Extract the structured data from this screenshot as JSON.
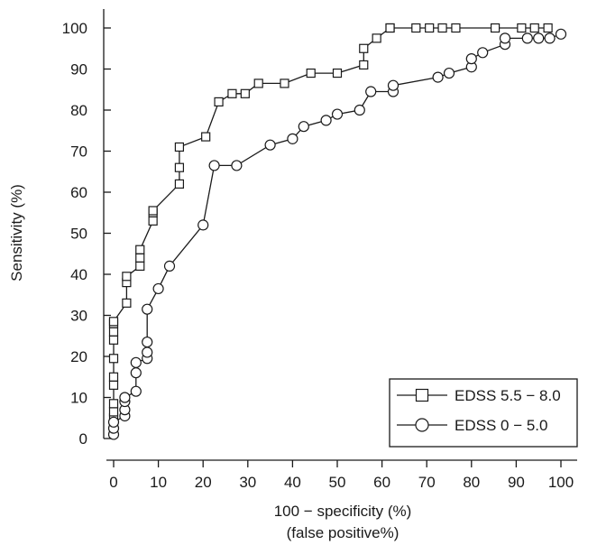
{
  "chart_data": {
    "type": "line",
    "xlabel": "100 − specificity (%)",
    "xlabel_sub": "(false positive%)",
    "ylabel": "Sensitivity (%)",
    "xlim": [
      0,
      100
    ],
    "ylim": [
      0,
      100
    ],
    "xticks": [
      0,
      10,
      20,
      30,
      40,
      50,
      60,
      70,
      80,
      90,
      100
    ],
    "yticks": [
      0,
      10,
      20,
      30,
      40,
      50,
      60,
      70,
      80,
      90,
      100
    ],
    "grid": false,
    "legend_position": "bottom-right",
    "series": [
      {
        "name": "EDSS 5.5 − 8.0",
        "marker": "square",
        "x": [
          0,
          0,
          0,
          0,
          0,
          0,
          0,
          0,
          0,
          0,
          0,
          0,
          2.9,
          2.9,
          2.9,
          5.9,
          5.9,
          5.9,
          8.8,
          8.8,
          8.8,
          14.7,
          14.7,
          14.7,
          20.6,
          23.5,
          26.5,
          29.4,
          32.4,
          38.2,
          44.1,
          50.0,
          55.9,
          55.9,
          58.8,
          61.8,
          61.8,
          67.6,
          70.6,
          73.5,
          76.5,
          85.3,
          91.2,
          94.1,
          97.1
        ],
        "y": [
          1.5,
          3,
          5,
          6.5,
          8.5,
          13,
          15,
          19.5,
          24,
          26,
          28,
          28.5,
          33,
          38,
          39.5,
          42,
          44,
          46,
          53,
          55,
          55.5,
          62,
          66,
          71,
          73.5,
          82,
          84,
          84,
          86.5,
          86.5,
          89,
          89,
          91,
          95,
          97.5,
          100,
          100,
          100,
          100,
          100,
          100,
          100,
          100,
          100,
          100
        ]
      },
      {
        "name": "EDSS 0 − 5.0",
        "marker": "circle",
        "x": [
          0,
          0,
          0,
          2.5,
          2.5,
          2.5,
          2.5,
          5,
          5,
          5,
          7.5,
          7.5,
          7.5,
          7.5,
          10,
          12.5,
          20,
          22.5,
          27.5,
          35,
          40,
          42.5,
          47.5,
          50,
          55,
          57.5,
          62.5,
          62.5,
          72.5,
          75,
          80,
          80,
          82.5,
          87.5,
          87.5,
          92.5,
          95,
          97.5,
          100
        ],
        "y": [
          1,
          2.5,
          4,
          5.5,
          7,
          9,
          10,
          11.5,
          16,
          18.5,
          19.5,
          21,
          23.5,
          31.5,
          36.5,
          42,
          52,
          66.5,
          66.5,
          71.5,
          73,
          76,
          77.5,
          79,
          80,
          84.5,
          84.5,
          86,
          88,
          89,
          90.5,
          92.5,
          94,
          96,
          97.5,
          97.5,
          97.5,
          97.5,
          98.5
        ]
      }
    ]
  }
}
